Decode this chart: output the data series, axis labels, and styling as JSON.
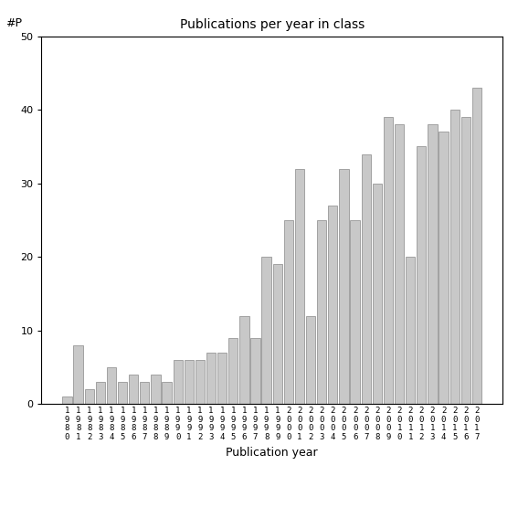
{
  "title": "Publications per year in class",
  "xlabel": "Publication year",
  "ylabel": "#P",
  "years": [
    "1980",
    "1981",
    "1982",
    "1983",
    "1984",
    "1985",
    "1986",
    "1987",
    "1988",
    "1989",
    "1990",
    "1991",
    "1992",
    "1993",
    "1994",
    "1995",
    "1996",
    "1997",
    "1998",
    "1999",
    "2000",
    "2001",
    "2002",
    "2003",
    "2004",
    "2005",
    "2006",
    "2007",
    "2008",
    "2009",
    "2010",
    "2011",
    "2012",
    "2013",
    "2014",
    "2015",
    "2016",
    "2017"
  ],
  "values": [
    1,
    8,
    2,
    3,
    5,
    3,
    4,
    3,
    4,
    3,
    6,
    6,
    6,
    7,
    7,
    9,
    12,
    9,
    20,
    19,
    25,
    32,
    12,
    25,
    27,
    32,
    25,
    34,
    30,
    39,
    38,
    20,
    35,
    38,
    37,
    40,
    39,
    43
  ],
  "bar_color": "#c8c8c8",
  "bar_edge_color": "#888888",
  "ylim": [
    0,
    50
  ],
  "yticks": [
    0,
    10,
    20,
    30,
    40,
    50
  ],
  "bg_color": "#ffffff",
  "title_fontsize": 10,
  "label_fontsize": 9,
  "tick_fontsize": 8
}
